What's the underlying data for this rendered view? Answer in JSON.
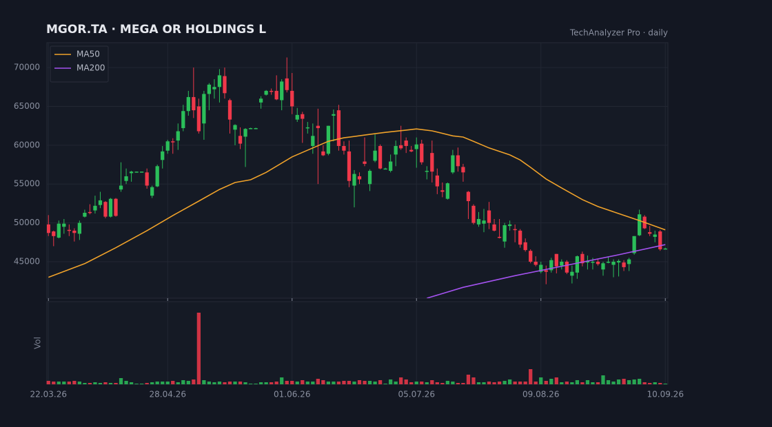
{
  "chart_data": {
    "type": "candlestick",
    "title": "MGOR.TA  ·  MEGA OR HOLDINGS L",
    "subtitle": "TechAnalyzer Pro · daily",
    "up_color": "#2bbf5a",
    "down_color": "#f0384a",
    "open": [
      49800,
      48900,
      48100,
      49500,
      49100,
      49000,
      48600,
      50800,
      51400,
      51600,
      52300,
      52700,
      50800,
      53100,
      54300,
      55400,
      56400,
      56500,
      56500,
      56500,
      53500,
      54700,
      58100,
      59300,
      60500,
      60600,
      62200,
      64400,
      66200,
      65000,
      62800,
      66600,
      67200,
      67500,
      68900,
      65800,
      62000,
      61200,
      61100,
      62200,
      62200,
      65500,
      66500,
      67000,
      67000,
      65800,
      68600,
      67000,
      63300,
      64000,
      62200,
      59900,
      62500,
      59200,
      58900,
      63800,
      64500,
      59900,
      59200,
      54800,
      56000,
      57900,
      55000,
      58000,
      59900,
      57000,
      56700,
      58800,
      60000,
      60600,
      59400,
      59500,
      60200,
      56600,
      59000,
      56100,
      54200,
      53100,
      56500,
      58700,
      57200,
      54000,
      52200,
      49800,
      49900,
      51600,
      49800,
      48200,
      47600,
      49600,
      49200,
      49000,
      47500,
      46400,
      45000,
      43700,
      43900,
      43900,
      46000,
      44500,
      45000,
      43200,
      43600,
      46000,
      44900,
      45000,
      45000,
      44000,
      44900,
      44600,
      44900,
      44900,
      44700,
      46100,
      48400,
      50800,
      48800,
      48200,
      48900,
      46700
    ],
    "high": [
      51000,
      49000,
      50300,
      50500,
      49800,
      49300,
      50300,
      51700,
      52400,
      53500,
      54000,
      52800,
      53200,
      53200,
      57800,
      57000,
      56700,
      56600,
      56600,
      57000,
      54800,
      57500,
      59900,
      60700,
      60900,
      62800,
      65200,
      67000,
      70000,
      66000,
      67000,
      68000,
      68500,
      69800,
      70000,
      66000,
      62700,
      62300,
      62200,
      62250,
      62250,
      66300,
      67100,
      67300,
      69000,
      68500,
      71300,
      69300,
      64800,
      64300,
      63000,
      62800,
      64700,
      60000,
      62500,
      64600,
      65200,
      60500,
      60600,
      56800,
      56500,
      61000,
      56900,
      61400,
      60100,
      57100,
      58800,
      60600,
      62500,
      61000,
      59900,
      61000,
      60700,
      57300,
      60600,
      57000,
      55200,
      55200,
      59400,
      59700,
      57600,
      54100,
      52400,
      51400,
      51800,
      52700,
      50500,
      50500,
      50000,
      50300,
      49800,
      49200,
      48000,
      46600,
      45700,
      45000,
      44500,
      45500,
      46000,
      45300,
      45200,
      44500,
      45800,
      46300,
      45800,
      45500,
      45300,
      45000,
      45600,
      45300,
      45300,
      45200,
      45500,
      48300,
      51700,
      51000,
      49600,
      49000,
      49100,
      46800
    ],
    "low": [
      48300,
      47000,
      48000,
      48600,
      48300,
      47600,
      47800,
      50700,
      51100,
      51200,
      51900,
      50600,
      50700,
      50800,
      54000,
      55000,
      55300,
      56500,
      56500,
      54400,
      53200,
      54600,
      57000,
      58900,
      58900,
      59400,
      61800,
      63800,
      63500,
      61500,
      60700,
      64500,
      66000,
      65500,
      66000,
      61500,
      60000,
      59500,
      57200,
      62150,
      62150,
      64700,
      66400,
      66500,
      65800,
      64500,
      66800,
      64000,
      63000,
      60300,
      61500,
      58900,
      55000,
      58600,
      58700,
      60500,
      59300,
      58800,
      54600,
      52000,
      55000,
      57300,
      54100,
      57800,
      56900,
      56900,
      56500,
      57300,
      59400,
      59000,
      59100,
      57100,
      57500,
      55600,
      55200,
      53700,
      53300,
      53000,
      56300,
      56600,
      55300,
      50500,
      49800,
      49500,
      48800,
      49200,
      48900,
      48000,
      46800,
      49000,
      47500,
      46800,
      46300,
      44800,
      44400,
      43500,
      42100,
      43600,
      43500,
      44000,
      43400,
      42200,
      42800,
      44400,
      44000,
      44000,
      44500,
      43200,
      44800,
      43000,
      43100,
      43800,
      43800,
      45900,
      48300,
      49200,
      48300,
      47500,
      46400,
      46600
    ],
    "close": [
      48700,
      48300,
      49900,
      49900,
      49000,
      48700,
      50000,
      51300,
      51300,
      52200,
      52900,
      50800,
      53100,
      50900,
      54800,
      56000,
      56600,
      56600,
      56600,
      54800,
      54600,
      57300,
      59200,
      60500,
      60400,
      61800,
      64400,
      66200,
      64500,
      61800,
      66600,
      67800,
      67500,
      69000,
      66700,
      63300,
      62600,
      60200,
      62100,
      62200,
      62200,
      66000,
      67000,
      66900,
      65900,
      68200,
      67100,
      65000,
      63900,
      63400,
      62300,
      61200,
      62200,
      58700,
      62500,
      64000,
      59900,
      59300,
      55400,
      56300,
      55600,
      57600,
      56700,
      59300,
      57000,
      57000,
      57900,
      59900,
      59600,
      59900,
      59200,
      60100,
      57800,
      56700,
      56600,
      54700,
      54000,
      55100,
      58700,
      57300,
      56500,
      52800,
      50000,
      50500,
      50300,
      50000,
      49000,
      48100,
      49700,
      49800,
      49100,
      47200,
      46500,
      45000,
      44600,
      44600,
      43700,
      45200,
      44400,
      45000,
      43600,
      43700,
      45700,
      44800,
      45100,
      45000,
      44700,
      44800,
      45000,
      45000,
      45100,
      44300,
      45300,
      48300,
      51100,
      49300,
      48600,
      48500,
      46600,
      46700
    ],
    "xlim": [
      -0.3,
      119.5
    ],
    "xticks": [
      {
        "value": 0,
        "label": "22.03.26"
      },
      {
        "value": 23,
        "label": "28.04.26"
      },
      {
        "value": 47,
        "label": "01.06.26"
      },
      {
        "value": 71,
        "label": "05.07.26"
      },
      {
        "value": 95,
        "label": "09.08.26"
      },
      {
        "value": 119,
        "label": "10.09.26"
      }
    ],
    "ylim": [
      40300,
      73200
    ],
    "yticks": [
      45000,
      50000,
      55000,
      60000,
      65000,
      70000
    ],
    "grid": true,
    "legend": "upper left",
    "series": [
      {
        "name": "MA50",
        "color": "#f0a22a",
        "x": [
          0,
          7,
          13,
          19,
          24,
          29,
          33,
          36,
          39,
          42,
          47,
          51,
          54,
          57,
          62,
          65,
          69,
          71,
          74,
          78,
          80,
          82,
          85,
          89,
          91,
          93,
          96,
          99,
          103,
          106,
          110,
          114,
          119
        ],
        "values": [
          43000,
          44750,
          46800,
          49000,
          50950,
          52800,
          54300,
          55200,
          55550,
          56500,
          58500,
          59650,
          60500,
          60950,
          61400,
          61650,
          61950,
          62100,
          61850,
          61200,
          61050,
          60500,
          59650,
          58750,
          58100,
          57150,
          55650,
          54500,
          53000,
          52100,
          51200,
          50300,
          49100
        ]
      },
      {
        "name": "MA200",
        "color": "#a452f0",
        "x": [
          73,
          80,
          90,
          100,
          110,
          119
        ],
        "values": [
          40300,
          41700,
          43200,
          44550,
          45900,
          47200
        ]
      }
    ],
    "volume": {
      "label": "Vol",
      "ylim": [
        0,
        120
      ],
      "values": [
        5,
        4,
        4,
        4,
        4,
        5,
        4,
        2,
        2,
        3,
        2,
        3,
        2,
        2,
        9,
        5,
        3,
        1,
        1,
        2,
        3,
        4,
        4,
        4,
        5,
        3,
        6,
        5,
        7,
        104,
        6,
        4,
        3,
        4,
        3,
        4,
        4,
        4,
        3,
        1,
        1,
        3,
        3,
        3,
        4,
        10,
        5,
        5,
        4,
        6,
        4,
        4,
        8,
        6,
        4,
        4,
        4,
        5,
        5,
        4,
        6,
        5,
        5,
        4,
        6,
        1,
        7,
        4,
        10,
        7,
        3,
        4,
        4,
        3,
        6,
        3,
        2,
        5,
        4,
        2,
        2,
        14,
        10,
        3,
        3,
        4,
        3,
        4,
        5,
        7,
        4,
        4,
        4,
        22,
        4,
        10,
        5,
        8,
        10,
        3,
        4,
        3,
        6,
        3,
        6,
        3,
        3,
        13,
        6,
        4,
        7,
        8,
        6,
        7,
        8,
        3,
        2,
        3,
        2,
        1
      ]
    }
  }
}
